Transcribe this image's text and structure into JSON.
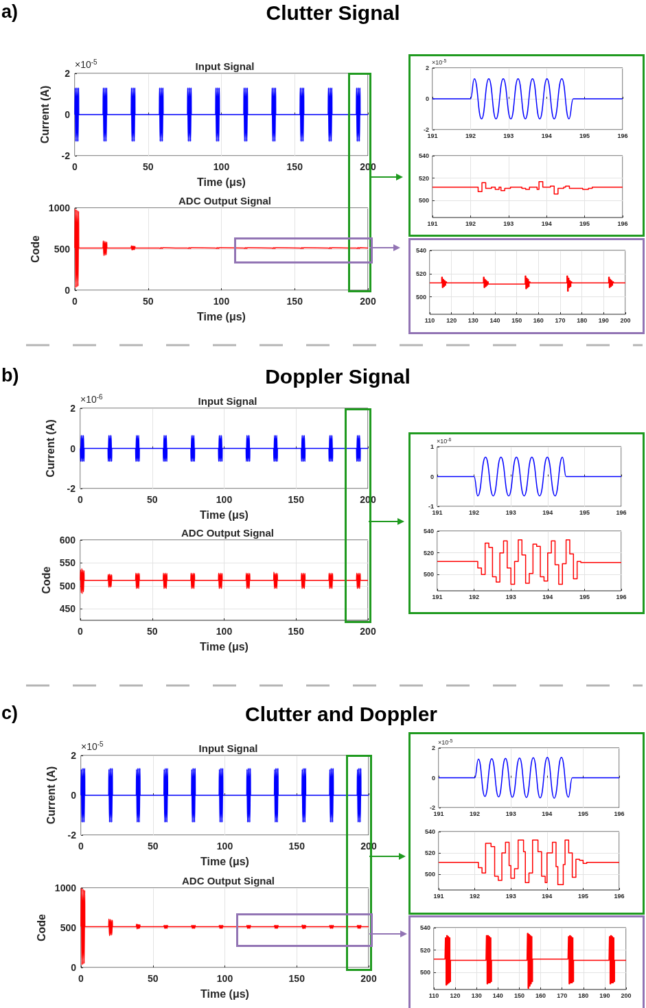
{
  "chart_data": [
    {
      "type": "other",
      "title": "Clutter Signal",
      "annotations": [
        "a)"
      ]
    },
    {
      "type": "line",
      "title": "Input Signal",
      "xlabel": "Time (μs)",
      "ylabel": "Current (A)",
      "annotations": [
        "×10$^{-5}$"
      ],
      "xlim": [
        0,
        200
      ],
      "xticks": [
        0,
        50,
        100,
        150,
        200
      ],
      "ylim": [
        -2,
        2
      ],
      "yticks": [
        -2,
        0,
        2
      ],
      "grid": true,
      "color": "#0000ff",
      "x": [
        0,
        0.2,
        0.6,
        1,
        1.4,
        1.8,
        2.2,
        2.6,
        2.7,
        19.2,
        19.4,
        19.8,
        20.2,
        20.6,
        21,
        21.4,
        21.8,
        21.9,
        38.4,
        38.6,
        39,
        39.4,
        39.8,
        40.2,
        40.6,
        41,
        41.1,
        57.6,
        57.8,
        58.2,
        58.6,
        59,
        59.4,
        59.8,
        60.2,
        60.3,
        76.8,
        77,
        77.4,
        77.8,
        78.2,
        78.6,
        79,
        79.4,
        79.5,
        96,
        96.2,
        96.6,
        97,
        97.4,
        97.8,
        98.2,
        98.6,
        98.7,
        115.2,
        115.4,
        115.8,
        116.2,
        116.6,
        117,
        117.4,
        117.8,
        117.9,
        134.4,
        134.6,
        135,
        135.4,
        135.8,
        136.2,
        136.6,
        137,
        137.1,
        153.6,
        153.8,
        154.2,
        154.6,
        155,
        155.4,
        155.8,
        156.2,
        156.3,
        172.8,
        173,
        173.4,
        173.8,
        174.2,
        174.6,
        175,
        175.4,
        175.5,
        192,
        192.2,
        192.6,
        193,
        193.4,
        193.8,
        194.2,
        194.6,
        194.7,
        200
      ],
      "values": [
        0,
        1.3,
        -1.3,
        1.3,
        -1.3,
        1.3,
        -1.3,
        1.3,
        0,
        0,
        1.3,
        -1.3,
        1.3,
        -1.3,
        1.3,
        -1.3,
        1.3,
        0,
        0,
        1.3,
        -1.3,
        1.3,
        -1.3,
        1.3,
        -1.3,
        1.3,
        0,
        0,
        1.3,
        -1.3,
        1.3,
        -1.3,
        1.3,
        -1.3,
        1.3,
        0,
        0,
        1.3,
        -1.3,
        1.3,
        -1.3,
        1.3,
        -1.3,
        1.3,
        0,
        0,
        1.3,
        -1.3,
        1.3,
        -1.3,
        1.3,
        -1.3,
        1.3,
        0,
        0,
        1.3,
        -1.3,
        1.3,
        -1.3,
        1.3,
        -1.3,
        1.3,
        0,
        0,
        1.3,
        -1.3,
        1.3,
        -1.3,
        1.3,
        -1.3,
        1.3,
        0,
        0,
        1.3,
        -1.3,
        1.3,
        -1.3,
        1.3,
        -1.3,
        1.3,
        0,
        0,
        1.3,
        -1.3,
        1.3,
        -1.3,
        1.3,
        -1.3,
        1.3,
        0,
        0,
        1.3,
        -1.3,
        1.3,
        -1.3,
        1.3,
        -1.3,
        1.3,
        0,
        0
      ]
    },
    {
      "type": "line",
      "title": "ADC Output Signal",
      "xlabel": "Time (μs)",
      "ylabel": "Code",
      "xlim": [
        0,
        200
      ],
      "xticks": [
        0,
        50,
        100,
        150,
        200
      ],
      "ylim": [
        0,
        1000
      ],
      "yticks": [
        0,
        500,
        1000
      ],
      "grid": true,
      "color": "#ff0000",
      "x": [
        0,
        0.2,
        0.6,
        1,
        1.4,
        1.8,
        2.2,
        2.6,
        2.7,
        19.2,
        19.4,
        19.8,
        20.2,
        20.6,
        21,
        21.4,
        21.8,
        21.9,
        38.4,
        38.6,
        39,
        39.4,
        39.8,
        40.2,
        40.6,
        41,
        41.1,
        57.6,
        57.8,
        58.2,
        58.6,
        59,
        59.4,
        59.8,
        60.2,
        60.3,
        76.8,
        77,
        77.4,
        77.8,
        78.2,
        78.6,
        79,
        79.4,
        79.5,
        96,
        96.2,
        96.6,
        97,
        97.4,
        97.8,
        98.2,
        98.6,
        98.7,
        115.2,
        115.4,
        115.8,
        116.2,
        116.6,
        117,
        117.4,
        117.8,
        117.9,
        134.4,
        134.6,
        135,
        135.4,
        135.8,
        136.2,
        136.6,
        137,
        137.1,
        153.6,
        153.8,
        154.2,
        154.6,
        155,
        155.4,
        155.8,
        156.2,
        156.3,
        172.8,
        173,
        173.4,
        173.8,
        174.2,
        174.6,
        175,
        175.4,
        175.5,
        192,
        192.2,
        192.6,
        193,
        193.4,
        193.8,
        194.2,
        194.6,
        194.7,
        200
      ],
      "values": [
        512,
        990,
        30,
        980,
        40,
        970,
        50,
        960,
        512,
        512,
        600,
        420,
        595,
        425,
        590,
        430,
        585,
        512,
        512,
        540,
        490,
        538,
        492,
        536,
        494,
        534,
        512,
        512,
        516,
        508,
        516,
        508,
        516,
        508,
        516,
        512,
        512,
        516,
        508,
        516,
        508,
        516,
        508,
        516,
        512,
        512,
        516,
        508,
        516,
        508,
        516,
        508,
        516,
        512,
        512,
        516,
        508,
        516,
        508,
        516,
        508,
        516,
        512,
        512,
        516,
        508,
        516,
        508,
        516,
        508,
        516,
        512,
        512,
        516,
        508,
        516,
        508,
        516,
        508,
        516,
        512,
        512,
        516,
        508,
        516,
        508,
        516,
        508,
        516,
        512,
        512,
        516,
        508,
        516,
        508,
        516,
        508,
        516,
        512,
        512
      ]
    },
    {
      "type": "line",
      "annotations": [
        "×10$^{-5}$"
      ],
      "xlim": [
        191,
        196
      ],
      "xticks": [
        191,
        192,
        193,
        194,
        195,
        196
      ],
      "ylim": [
        -2,
        2
      ],
      "yticks": [
        -2,
        0,
        2
      ],
      "grid": true,
      "color": "#0000ff",
      "x": [
        191,
        192,
        192.1,
        192.29,
        192.48,
        192.67,
        192.86,
        193.06,
        193.25,
        193.44,
        193.63,
        193.82,
        194.01,
        194.2,
        194.4,
        194.59,
        194.7,
        196
      ],
      "values": [
        0,
        0,
        1.3,
        -1.3,
        1.3,
        -1.3,
        1.3,
        -1.3,
        1.3,
        -1.3,
        1.3,
        -1.3,
        1.3,
        -1.3,
        1.3,
        -1.3,
        0,
        0
      ]
    },
    {
      "type": "step",
      "xlim": [
        191,
        196
      ],
      "xticks": [
        191,
        192,
        193,
        194,
        195,
        196
      ],
      "ylim": [
        485,
        540
      ],
      "yticks": [
        500,
        520,
        540
      ],
      "grid": true,
      "color": "#ff0000",
      "x": [
        191,
        192.2,
        192.3,
        192.4,
        192.55,
        192.65,
        192.75,
        192.8,
        192.9,
        193.05,
        193.35,
        193.45,
        193.55,
        193.75,
        193.8,
        193.9,
        194.1,
        194.2,
        194.3,
        194.45,
        194.5,
        194.6,
        194.95,
        195.1,
        195.2,
        196
      ],
      "values": [
        512,
        508,
        516,
        511,
        512,
        510,
        512,
        509,
        511,
        512,
        511,
        510,
        512,
        510,
        517,
        512,
        513,
        506,
        511,
        512,
        513,
        511,
        510,
        511,
        512,
        512
      ]
    },
    {
      "type": "step",
      "xlim": [
        110,
        200
      ],
      "xticks": [
        110,
        120,
        130,
        140,
        150,
        160,
        170,
        180,
        190,
        200
      ],
      "ylim": [
        485,
        540
      ],
      "yticks": [
        500,
        520,
        540
      ],
      "grid": true,
      "color": "#ff0000",
      "x": [
        110,
        115.2,
        115.5,
        115.8,
        116.1,
        116.4,
        116.7,
        117,
        117.3,
        117.7,
        134.4,
        134.7,
        135,
        135.3,
        135.6,
        135.9,
        136.2,
        136.5,
        136.9,
        153.6,
        153.9,
        154.2,
        154.5,
        154.8,
        155.1,
        155.4,
        155.7,
        156.1,
        172.8,
        173.1,
        173.4,
        173.7,
        174,
        174.3,
        174.6,
        174.9,
        175.3,
        192,
        192.3,
        192.6,
        192.9,
        193.2,
        193.5,
        193.8,
        194.1,
        194.5,
        200
      ],
      "values": [
        512,
        512,
        517,
        508,
        515,
        509,
        514,
        510,
        513,
        512,
        512,
        517,
        508,
        515,
        509,
        514,
        510,
        513,
        511,
        511,
        518,
        507,
        516,
        508,
        515,
        509,
        513,
        512,
        512,
        518,
        505,
        516,
        508,
        514,
        509,
        513,
        512,
        512,
        517,
        508,
        515,
        509,
        514,
        510,
        513,
        512,
        512
      ]
    },
    {
      "type": "other",
      "title": "Doppler Signal",
      "annotations": [
        "b)"
      ]
    },
    {
      "type": "line",
      "title": "Input Signal",
      "xlabel": "Time (μs)",
      "ylabel": "Current (A)",
      "annotations": [
        "×10$^{-6}$"
      ],
      "xlim": [
        0,
        200
      ],
      "xticks": [
        0,
        50,
        100,
        150,
        200
      ],
      "ylim": [
        -2,
        2
      ],
      "yticks": [
        -2,
        0,
        2
      ],
      "grid": true,
      "color": "#0000ff",
      "x": [
        0,
        0.2,
        0.6,
        1,
        1.4,
        1.8,
        2.2,
        2.6,
        2.7,
        19.2,
        19.4,
        19.8,
        20.2,
        20.6,
        21,
        21.4,
        21.8,
        21.9,
        38.4,
        38.6,
        39,
        39.4,
        39.8,
        40.2,
        40.6,
        41,
        41.1,
        57.6,
        57.8,
        58.2,
        58.6,
        59,
        59.4,
        59.8,
        60.2,
        60.3,
        76.8,
        77,
        77.4,
        77.8,
        78.2,
        78.6,
        79,
        79.4,
        79.5,
        96,
        96.2,
        96.6,
        97,
        97.4,
        97.8,
        98.2,
        98.6,
        98.7,
        115.2,
        115.4,
        115.8,
        116.2,
        116.6,
        117,
        117.4,
        117.8,
        117.9,
        134.4,
        134.6,
        135,
        135.4,
        135.8,
        136.2,
        136.6,
        137,
        137.1,
        153.6,
        153.8,
        154.2,
        154.6,
        155,
        155.4,
        155.8,
        156.2,
        156.3,
        172.8,
        173,
        173.4,
        173.8,
        174.2,
        174.6,
        175,
        175.4,
        175.5,
        192,
        192.2,
        192.6,
        193,
        193.4,
        193.8,
        194.2,
        194.6,
        194.7,
        200
      ],
      "values": [
        0,
        -0.65,
        0.65,
        -0.65,
        0.65,
        -0.65,
        0.65,
        -0.65,
        0,
        0,
        -0.65,
        0.65,
        -0.65,
        0.65,
        -0.65,
        0.65,
        -0.65,
        0,
        0,
        -0.65,
        0.65,
        -0.65,
        0.65,
        -0.65,
        0.65,
        -0.65,
        0,
        0,
        -0.65,
        0.65,
        -0.65,
        0.65,
        -0.65,
        0.65,
        -0.65,
        0,
        0,
        -0.65,
        0.65,
        -0.65,
        0.65,
        -0.65,
        0.65,
        -0.65,
        0,
        0,
        -0.65,
        0.65,
        -0.65,
        0.65,
        -0.65,
        0.65,
        -0.65,
        0,
        0,
        -0.65,
        0.65,
        -0.65,
        0.65,
        -0.65,
        0.65,
        -0.65,
        0,
        0,
        -0.65,
        0.65,
        -0.65,
        0.65,
        -0.65,
        0.65,
        -0.65,
        0,
        0,
        -0.65,
        0.65,
        -0.65,
        0.65,
        -0.65,
        0.65,
        -0.65,
        0,
        0,
        -0.65,
        0.65,
        -0.65,
        0.65,
        -0.65,
        0.65,
        -0.65,
        0,
        0,
        -0.65,
        0.65,
        -0.65,
        0.65,
        -0.65,
        0.65,
        -0.65,
        0,
        0
      ]
    },
    {
      "type": "line",
      "title": "ADC Output Signal",
      "xlabel": "Time (μs)",
      "ylabel": "Code",
      "xlim": [
        0,
        200
      ],
      "xticks": [
        0,
        50,
        100,
        150,
        200
      ],
      "ylim": [
        425,
        600
      ],
      "yticks": [
        450,
        500,
        550,
        600
      ],
      "grid": true,
      "color": "#ff0000",
      "x": [
        0,
        0.2,
        0.6,
        1,
        1.4,
        1.8,
        2.2,
        2.6,
        2.7,
        19.2,
        19.4,
        19.8,
        20.2,
        20.6,
        21,
        21.4,
        21.8,
        21.9,
        38.4,
        38.6,
        39,
        39.4,
        39.8,
        40.2,
        40.6,
        41,
        41.1,
        57.6,
        57.8,
        58.2,
        58.6,
        59,
        59.4,
        59.8,
        60.2,
        60.3,
        76.8,
        77,
        77.4,
        77.8,
        78.2,
        78.6,
        79,
        79.4,
        79.5,
        96,
        96.2,
        96.6,
        97,
        97.4,
        97.8,
        98.2,
        98.6,
        98.7,
        115.2,
        115.4,
        115.8,
        116.2,
        116.6,
        117,
        117.4,
        117.8,
        117.9,
        134.4,
        134.6,
        135,
        135.4,
        135.8,
        136.2,
        136.6,
        137,
        137.1,
        153.6,
        153.8,
        154.2,
        154.6,
        155,
        155.4,
        155.8,
        156.2,
        156.3,
        172.8,
        173,
        173.4,
        173.8,
        174.2,
        174.6,
        175,
        175.4,
        175.5,
        192,
        192.2,
        192.6,
        193,
        193.4,
        193.8,
        194.2,
        194.6,
        194.7,
        200
      ],
      "values": [
        512,
        535,
        485,
        538,
        483,
        535,
        487,
        533,
        512,
        512,
        525,
        497,
        526,
        497,
        525,
        498,
        524,
        512,
        512,
        528,
        494,
        527,
        495,
        528,
        494,
        527,
        512,
        512,
        528,
        494,
        527,
        495,
        528,
        494,
        527,
        512,
        512,
        528,
        494,
        527,
        495,
        528,
        494,
        527,
        512,
        512,
        528,
        494,
        527,
        495,
        528,
        494,
        527,
        512,
        512,
        528,
        494,
        527,
        495,
        528,
        494,
        527,
        512,
        512,
        530,
        494,
        527,
        495,
        528,
        494,
        527,
        512,
        512,
        528,
        494,
        527,
        495,
        528,
        494,
        527,
        512,
        512,
        528,
        494,
        527,
        495,
        528,
        494,
        527,
        512,
        512,
        528,
        494,
        527,
        495,
        528,
        494,
        527,
        512,
        512
      ]
    },
    {
      "type": "line",
      "annotations": [
        "×10$^{-6}$"
      ],
      "xlim": [
        191,
        196
      ],
      "xticks": [
        191,
        192,
        193,
        194,
        195,
        196
      ],
      "ylim": [
        -1,
        1
      ],
      "yticks": [
        -1,
        0,
        1
      ],
      "grid": true,
      "color": "#0000ff",
      "x": [
        191,
        192,
        192.1,
        192.31,
        192.52,
        192.73,
        192.94,
        193.15,
        193.36,
        193.57,
        193.78,
        193.99,
        194.2,
        194.4,
        194.5,
        196
      ],
      "values": [
        0,
        0,
        -0.65,
        0.65,
        -0.65,
        0.65,
        -0.65,
        0.65,
        -0.65,
        0.65,
        -0.65,
        0.65,
        -0.65,
        0.65,
        0,
        0
      ]
    },
    {
      "type": "step",
      "xlim": [
        191,
        196
      ],
      "xticks": [
        191,
        192,
        193,
        194,
        195,
        196
      ],
      "ylim": [
        485,
        540
      ],
      "yticks": [
        500,
        520,
        540
      ],
      "grid": true,
      "color": "#ff0000",
      "x": [
        191,
        192.1,
        192.2,
        192.3,
        192.4,
        192.5,
        192.6,
        192.7,
        192.8,
        192.9,
        193.0,
        193.1,
        193.2,
        193.3,
        193.4,
        193.5,
        193.6,
        193.7,
        193.8,
        193.9,
        194.0,
        194.1,
        194.2,
        194.3,
        194.4,
        194.5,
        194.6,
        194.7,
        194.8,
        194.9,
        196
      ],
      "values": [
        512,
        506,
        500,
        529,
        525,
        498,
        493,
        520,
        531,
        506,
        491,
        512,
        532,
        518,
        492,
        501,
        528,
        526,
        498,
        494,
        520,
        531,
        509,
        491,
        510,
        532,
        519,
        496,
        512,
        511,
        511
      ]
    },
    {
      "type": "other",
      "title": "Clutter and Doppler",
      "annotations": [
        "c)"
      ]
    },
    {
      "type": "line",
      "title": "Input Signal",
      "xlabel": "Time (μs)",
      "ylabel": "Current (A)",
      "annotations": [
        "×10$^{-5}$"
      ],
      "xlim": [
        0,
        200
      ],
      "xticks": [
        0,
        50,
        100,
        150,
        200
      ],
      "ylim": [
        -2,
        2
      ],
      "yticks": [
        -2,
        0,
        2
      ],
      "grid": true,
      "color": "#0000ff",
      "x": [
        0,
        0.2,
        0.6,
        1,
        1.4,
        1.8,
        2.2,
        2.6,
        2.7,
        19.2,
        19.4,
        19.8,
        20.2,
        20.6,
        21,
        21.4,
        21.8,
        21.9,
        38.4,
        38.6,
        39,
        39.4,
        39.8,
        40.2,
        40.6,
        41,
        41.1,
        57.6,
        57.8,
        58.2,
        58.6,
        59,
        59.4,
        59.8,
        60.2,
        60.3,
        76.8,
        77,
        77.4,
        77.8,
        78.2,
        78.6,
        79,
        79.4,
        79.5,
        96,
        96.2,
        96.6,
        97,
        97.4,
        97.8,
        98.2,
        98.6,
        98.7,
        115.2,
        115.4,
        115.8,
        116.2,
        116.6,
        117,
        117.4,
        117.8,
        117.9,
        134.4,
        134.6,
        135,
        135.4,
        135.8,
        136.2,
        136.6,
        137,
        137.1,
        153.6,
        153.8,
        154.2,
        154.6,
        155,
        155.4,
        155.8,
        156.2,
        156.3,
        172.8,
        173,
        173.4,
        173.8,
        174.2,
        174.6,
        175,
        175.4,
        175.5,
        192,
        192.2,
        192.6,
        193,
        193.4,
        193.8,
        194.2,
        194.6,
        194.7,
        200
      ],
      "values": [
        0,
        1.3,
        -1.35,
        1.35,
        -1.35,
        1.35,
        -1.35,
        1.35,
        0,
        0,
        1.3,
        -1.35,
        1.35,
        -1.35,
        1.35,
        -1.35,
        1.35,
        0,
        0,
        1.3,
        -1.35,
        1.35,
        -1.35,
        1.35,
        -1.35,
        1.35,
        0,
        0,
        1.3,
        -1.35,
        1.35,
        -1.35,
        1.35,
        -1.35,
        1.35,
        0,
        0,
        1.3,
        -1.35,
        1.35,
        -1.35,
        1.35,
        -1.35,
        1.35,
        0,
        0,
        1.3,
        -1.35,
        1.35,
        -1.35,
        1.35,
        -1.35,
        1.35,
        0,
        0,
        1.3,
        -1.35,
        1.35,
        -1.35,
        1.35,
        -1.35,
        1.35,
        0,
        0,
        1.3,
        -1.35,
        1.35,
        -1.35,
        1.35,
        -1.35,
        1.35,
        0,
        0,
        1.3,
        -1.35,
        1.35,
        -1.35,
        1.35,
        -1.35,
        1.35,
        0,
        0,
        1.3,
        -1.35,
        1.35,
        -1.35,
        1.35,
        -1.35,
        1.35,
        0,
        0,
        1.3,
        -1.35,
        1.35,
        -1.35,
        1.35,
        -1.35,
        1.35,
        0,
        0
      ]
    },
    {
      "type": "line",
      "title": "ADC Output Signal",
      "xlabel": "Time (μs)",
      "ylabel": "Code",
      "xlim": [
        0,
        200
      ],
      "xticks": [
        0,
        50,
        100,
        150,
        200
      ],
      "ylim": [
        0,
        1000
      ],
      "yticks": [
        0,
        500,
        1000
      ],
      "grid": true,
      "color": "#ff0000",
      "x": [
        0,
        0.2,
        0.6,
        1,
        1.4,
        1.8,
        2.2,
        2.6,
        2.7,
        19.2,
        19.4,
        19.8,
        20.2,
        20.6,
        21,
        21.4,
        21.8,
        21.9,
        38.4,
        38.6,
        39,
        39.4,
        39.8,
        40.2,
        40.6,
        41,
        41.1,
        57.6,
        57.8,
        58.2,
        58.6,
        59,
        59.4,
        59.8,
        60.2,
        60.3,
        76.8,
        77,
        77.4,
        77.8,
        78.2,
        78.6,
        79,
        79.4,
        79.5,
        96,
        96.2,
        96.6,
        97,
        97.4,
        97.8,
        98.2,
        98.6,
        98.7,
        115.2,
        115.4,
        115.8,
        116.2,
        116.6,
        117,
        117.4,
        117.8,
        117.9,
        134.4,
        134.6,
        135,
        135.4,
        135.8,
        136.2,
        136.6,
        137,
        137.1,
        153.6,
        153.8,
        154.2,
        154.6,
        155,
        155.4,
        155.8,
        156.2,
        156.3,
        172.8,
        173,
        173.4,
        173.8,
        174.2,
        174.6,
        175,
        175.4,
        175.5,
        192,
        192.2,
        192.6,
        193,
        193.4,
        193.8,
        194.2,
        194.6,
        194.7,
        200
      ],
      "values": [
        512,
        1000,
        30,
        990,
        40,
        980,
        50,
        970,
        512,
        512,
        610,
        400,
        605,
        405,
        600,
        410,
        595,
        512,
        512,
        545,
        485,
        540,
        490,
        538,
        492,
        536,
        512,
        512,
        530,
        492,
        530,
        492,
        530,
        492,
        530,
        512,
        512,
        530,
        492,
        530,
        492,
        530,
        492,
        530,
        512,
        512,
        530,
        492,
        530,
        492,
        530,
        492,
        530,
        512,
        512,
        530,
        492,
        530,
        492,
        530,
        492,
        530,
        512,
        512,
        530,
        492,
        530,
        492,
        530,
        492,
        530,
        512,
        512,
        535,
        488,
        532,
        490,
        532,
        490,
        530,
        512,
        512,
        530,
        492,
        530,
        492,
        530,
        492,
        530,
        512,
        512,
        530,
        492,
        530,
        492,
        530,
        492,
        530,
        512,
        512
      ]
    },
    {
      "type": "line",
      "annotations": [
        "×10$^{-5}$"
      ],
      "xlim": [
        191,
        196
      ],
      "xticks": [
        191,
        192,
        193,
        194,
        195,
        196
      ],
      "ylim": [
        -2,
        2
      ],
      "yticks": [
        -2,
        0,
        2
      ],
      "grid": true,
      "color": "#0000ff",
      "x": [
        191,
        192,
        192.1,
        192.28,
        192.47,
        192.66,
        192.85,
        193.04,
        193.24,
        193.43,
        193.62,
        193.81,
        194.01,
        194.2,
        194.4,
        194.59,
        194.7,
        196
      ],
      "values": [
        0,
        0,
        1.25,
        -1.25,
        1.28,
        -1.28,
        1.3,
        -1.3,
        1.32,
        -1.32,
        1.35,
        -1.35,
        1.37,
        -1.37,
        1.37,
        -1.3,
        0,
        0
      ]
    },
    {
      "type": "step",
      "xlim": [
        191,
        196
      ],
      "xticks": [
        191,
        192,
        193,
        194,
        195,
        196
      ],
      "ylim": [
        485,
        540
      ],
      "yticks": [
        500,
        520,
        540
      ],
      "grid": true,
      "color": "#ff0000",
      "x": [
        191,
        192.1,
        192.2,
        192.3,
        192.45,
        192.55,
        192.65,
        192.75,
        192.85,
        192.95,
        193.0,
        193.1,
        193.2,
        193.35,
        193.4,
        193.5,
        193.6,
        193.75,
        193.85,
        193.95,
        194.0,
        194.15,
        194.25,
        194.3,
        194.45,
        194.5,
        194.6,
        194.7,
        194.8,
        194.9,
        195.0,
        195.1,
        196
      ],
      "values": [
        511,
        506,
        501,
        529,
        526,
        498,
        494,
        520,
        530,
        508,
        496,
        505,
        532,
        521,
        492,
        501,
        532,
        521,
        498,
        492,
        520,
        530,
        507,
        490,
        509,
        532,
        520,
        497,
        514,
        513,
        510,
        511,
        511
      ]
    },
    {
      "type": "step",
      "xlim": [
        110,
        200
      ],
      "xticks": [
        110,
        120,
        130,
        140,
        150,
        160,
        170,
        180,
        190,
        200
      ],
      "ylim": [
        485,
        540
      ],
      "yticks": [
        500,
        520,
        540
      ],
      "grid": true,
      "color": "#ff0000",
      "x": [
        110,
        115.2,
        115.4,
        115.7,
        116,
        116.3,
        116.6,
        116.9,
        117.2,
        117.5,
        117.8,
        134.4,
        134.6,
        134.9,
        135.2,
        135.5,
        135.8,
        136.1,
        136.4,
        136.7,
        137,
        153.6,
        153.8,
        154.1,
        154.4,
        154.7,
        155,
        155.3,
        155.6,
        155.9,
        156.2,
        172.8,
        173,
        173.3,
        173.6,
        173.9,
        174.2,
        174.5,
        174.8,
        175.1,
        175.4,
        192,
        192.2,
        192.5,
        192.8,
        193.1,
        193.4,
        193.7,
        194,
        194.3,
        194.6,
        200
      ],
      "values": [
        512,
        512,
        531,
        489,
        533,
        490,
        532,
        491,
        531,
        492,
        511,
        511,
        533,
        490,
        533,
        491,
        532,
        491,
        531,
        492,
        511,
        511,
        535,
        486,
        534,
        488,
        533,
        490,
        532,
        492,
        512,
        512,
        532,
        490,
        533,
        491,
        532,
        491,
        531,
        492,
        511,
        511,
        532,
        490,
        533,
        491,
        532,
        491,
        531,
        492,
        511,
        511
      ]
    }
  ]
}
